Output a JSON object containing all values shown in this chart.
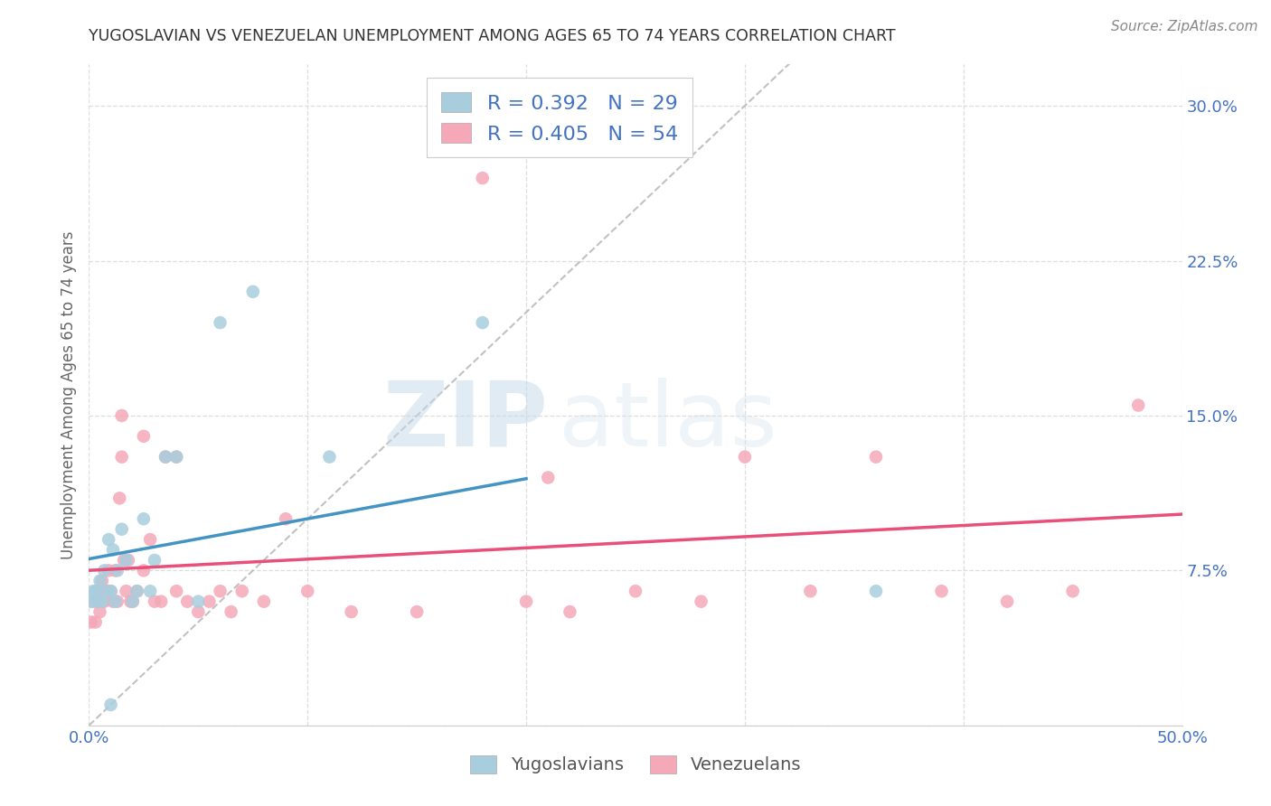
{
  "title": "YUGOSLAVIAN VS VENEZUELAN UNEMPLOYMENT AMONG AGES 65 TO 74 YEARS CORRELATION CHART",
  "source": "Source: ZipAtlas.com",
  "ylabel": "Unemployment Among Ages 65 to 74 years",
  "xlim": [
    0.0,
    0.5
  ],
  "ylim": [
    0.0,
    0.32
  ],
  "xticks": [
    0.0,
    0.1,
    0.2,
    0.3,
    0.4,
    0.5
  ],
  "yticks": [
    0.0,
    0.075,
    0.15,
    0.225,
    0.3
  ],
  "xticklabels": [
    "0.0%",
    "",
    "",
    "",
    "",
    "50.0%"
  ],
  "yticklabels": [
    "",
    "7.5%",
    "15.0%",
    "22.5%",
    "30.0%"
  ],
  "legend_labels": [
    "Yugoslavians",
    "Venezuelans"
  ],
  "R_yugo": 0.392,
  "N_yugo": 29,
  "R_vene": 0.405,
  "N_vene": 54,
  "color_yugo": "#A8CEDE",
  "color_vene": "#F4A8B8",
  "line_color_yugo": "#4393C3",
  "line_color_vene": "#E8507A",
  "diagonal_color": "#BBBBBB",
  "background_color": "#FFFFFF",
  "grid_color": "#DDDDDD",
  "title_color": "#333333",
  "axis_label_color": "#666666",
  "tick_color": "#4472C4",
  "watermark_zip": "ZIP",
  "watermark_atlas": "atlas",
  "yugo_x": [
    0.001,
    0.002,
    0.003,
    0.004,
    0.005,
    0.006,
    0.007,
    0.008,
    0.009,
    0.01,
    0.011,
    0.012,
    0.013,
    0.015,
    0.017,
    0.02,
    0.022,
    0.025,
    0.028,
    0.03,
    0.035,
    0.04,
    0.05,
    0.06,
    0.075,
    0.11,
    0.18,
    0.36,
    0.01
  ],
  "yugo_y": [
    0.06,
    0.065,
    0.065,
    0.06,
    0.07,
    0.06,
    0.075,
    0.065,
    0.09,
    0.065,
    0.085,
    0.06,
    0.075,
    0.095,
    0.08,
    0.06,
    0.065,
    0.1,
    0.065,
    0.08,
    0.13,
    0.13,
    0.06,
    0.195,
    0.21,
    0.13,
    0.195,
    0.065,
    0.01
  ],
  "vene_x": [
    0.001,
    0.002,
    0.003,
    0.004,
    0.005,
    0.006,
    0.007,
    0.008,
    0.009,
    0.01,
    0.011,
    0.012,
    0.013,
    0.014,
    0.015,
    0.016,
    0.017,
    0.018,
    0.019,
    0.02,
    0.022,
    0.025,
    0.028,
    0.03,
    0.033,
    0.035,
    0.04,
    0.045,
    0.05,
    0.055,
    0.06,
    0.065,
    0.07,
    0.08,
    0.09,
    0.1,
    0.12,
    0.15,
    0.18,
    0.2,
    0.22,
    0.25,
    0.28,
    0.3,
    0.33,
    0.36,
    0.39,
    0.42,
    0.45,
    0.48,
    0.015,
    0.025,
    0.04,
    0.21
  ],
  "vene_y": [
    0.05,
    0.06,
    0.05,
    0.065,
    0.055,
    0.07,
    0.06,
    0.065,
    0.075,
    0.065,
    0.06,
    0.075,
    0.06,
    0.11,
    0.13,
    0.08,
    0.065,
    0.08,
    0.06,
    0.06,
    0.065,
    0.075,
    0.09,
    0.06,
    0.06,
    0.13,
    0.065,
    0.06,
    0.055,
    0.06,
    0.065,
    0.055,
    0.065,
    0.06,
    0.1,
    0.065,
    0.055,
    0.055,
    0.265,
    0.06,
    0.055,
    0.065,
    0.06,
    0.13,
    0.065,
    0.13,
    0.065,
    0.06,
    0.065,
    0.155,
    0.15,
    0.14,
    0.13,
    0.12
  ]
}
